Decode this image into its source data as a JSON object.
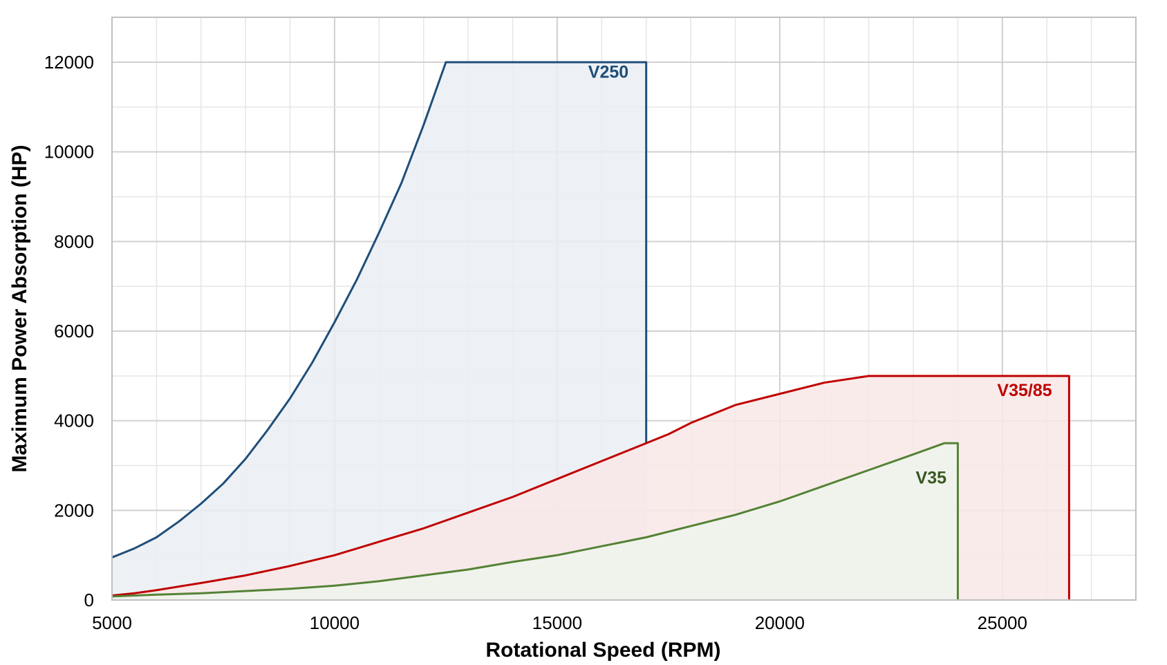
{
  "chart_data": {
    "type": "area",
    "title": "",
    "xlabel": "Rotational Speed (RPM)",
    "ylabel": "Maximum Power Absorption (HP)",
    "xlim": [
      5000,
      28000
    ],
    "ylim": [
      0,
      12000
    ],
    "x_ticks": [
      "5000",
      "10000",
      "15000",
      "20000",
      "25000"
    ],
    "x_tick_values": [
      5000,
      10000,
      15000,
      20000,
      25000
    ],
    "y_ticks": [
      "0",
      "2000",
      "4000",
      "6000",
      "8000",
      "10000",
      "12000"
    ],
    "y_tick_values": [
      0,
      2000,
      4000,
      6000,
      8000,
      10000,
      12000
    ],
    "grid": true,
    "series": [
      {
        "name": "V250",
        "color": "#1f4e79",
        "fill": "#eaeff3",
        "x": [
          5000,
          5500,
          6000,
          6500,
          7000,
          7500,
          8000,
          8500,
          9000,
          9500,
          10000,
          10500,
          11000,
          11500,
          12000,
          12500,
          17000,
          17000
        ],
        "y": [
          950,
          1150,
          1400,
          1750,
          2150,
          2600,
          3150,
          3800,
          4500,
          5300,
          6200,
          7150,
          8200,
          9300,
          10600,
          12000,
          12000,
          3500
        ]
      },
      {
        "name": "V35/85",
        "color": "#c00000",
        "fill": "#f8e8e6",
        "x": [
          5000,
          5500,
          6000,
          7000,
          8000,
          9000,
          10000,
          11000,
          12000,
          13000,
          14000,
          15000,
          16000,
          17000,
          17500,
          18000,
          19000,
          20000,
          21000,
          22000,
          26500,
          26500
        ],
        "y": [
          100,
          150,
          220,
          380,
          550,
          760,
          1000,
          1300,
          1600,
          1950,
          2300,
          2700,
          3100,
          3500,
          3700,
          3950,
          4350,
          4600,
          4850,
          5000,
          5000,
          0
        ]
      },
      {
        "name": "V35",
        "color": "#548235",
        "fill": "#eff4ec",
        "x": [
          5000,
          6000,
          7000,
          8000,
          9000,
          10000,
          11000,
          12000,
          13000,
          14000,
          15000,
          16000,
          17000,
          18000,
          19000,
          20000,
          21000,
          22000,
          23000,
          23700,
          24000,
          24000
        ],
        "y": [
          80,
          120,
          150,
          200,
          250,
          320,
          420,
          550,
          680,
          850,
          1000,
          1200,
          1400,
          1650,
          1900,
          2200,
          2550,
          2900,
          3250,
          3500,
          3500,
          0
        ]
      }
    ],
    "annotations": [
      {
        "text": "V250",
        "x": 16150,
        "y": 11650,
        "color": "#1f4e79"
      },
      {
        "text": "V35/85",
        "x": 25500,
        "y": 4550,
        "color": "#c00000"
      },
      {
        "text": "V35",
        "x": 23400,
        "y": 2600,
        "color": "#385723"
      }
    ]
  }
}
